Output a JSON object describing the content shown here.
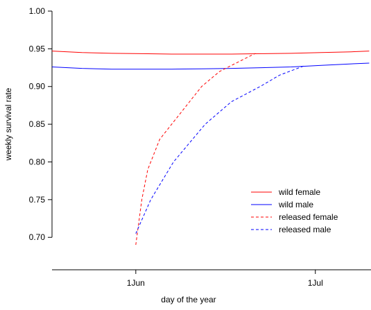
{
  "chart_data": {
    "type": "line",
    "x_label": "day of the year",
    "y_label": "weekly survival rate",
    "xlim": [
      138,
      191.3
    ],
    "ylim": [
      0.657,
      1.0
    ],
    "xticks": [
      {
        "value": 152,
        "label": "1Jun"
      },
      {
        "value": 182,
        "label": "1Jul"
      }
    ],
    "yticks": [
      {
        "value": 0.7,
        "label": "0.70"
      },
      0.75,
      {
        "value": 0.8,
        "label": "0.80"
      },
      0.85,
      {
        "value": 0.9,
        "label": "0.90"
      },
      0.95,
      {
        "value": 1.0,
        "label": "1.00"
      }
    ],
    "legend": "bottom-right",
    "series": [
      {
        "name": "wild female",
        "color": "#ff0000",
        "dashed": false,
        "x": [
          138,
          143,
          148,
          153,
          158,
          163,
          168,
          173,
          178,
          183,
          188,
          191
        ],
        "values": [
          0.947,
          0.945,
          0.944,
          0.9435,
          0.943,
          0.943,
          0.943,
          0.9435,
          0.944,
          0.945,
          0.946,
          0.947
        ]
      },
      {
        "name": "wild male",
        "color": "#0000ff",
        "dashed": false,
        "x": [
          138,
          143,
          148,
          153,
          158,
          163,
          168,
          173,
          178,
          183,
          188,
          191
        ],
        "values": [
          0.926,
          0.924,
          0.923,
          0.923,
          0.923,
          0.9235,
          0.924,
          0.925,
          0.926,
          0.928,
          0.93,
          0.931
        ]
      },
      {
        "name": "released female",
        "color": "#ff0000",
        "dashed": true,
        "x": [
          152,
          153,
          154,
          156,
          158,
          161,
          163,
          166,
          169,
          172
        ],
        "values": [
          0.69,
          0.75,
          0.79,
          0.83,
          0.85,
          0.88,
          0.9,
          0.92,
          0.932,
          0.944
        ]
      },
      {
        "name": "released male",
        "color": "#0000ff",
        "dashed": true,
        "x": [
          152,
          154.5,
          158.3,
          163.6,
          168,
          172.8,
          176,
          180
        ],
        "values": [
          0.705,
          0.75,
          0.8,
          0.85,
          0.88,
          0.9,
          0.915,
          0.927
        ]
      }
    ]
  }
}
